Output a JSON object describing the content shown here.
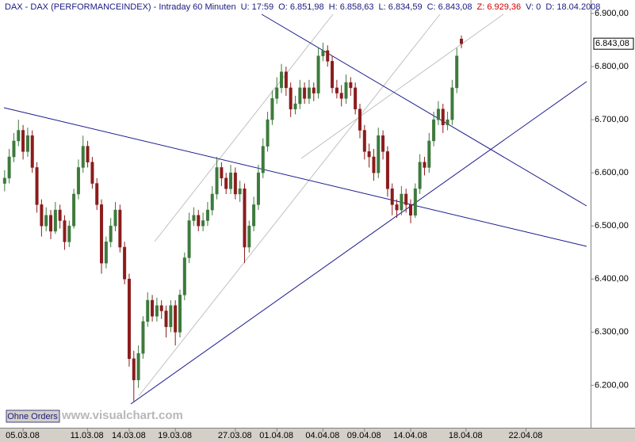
{
  "chart_data": {
    "type": "candlestick",
    "header": [
      "DAX - DAX (PERFORMANCEINDEX) - Intraday 60 Minuten",
      "U: 17:59",
      "O: 6.851,98",
      "H: 6.858,63",
      "L: 6.834,59",
      "C: 6.843,08",
      "Z: 6.929,36",
      "V: 0",
      "D: 18.04.2008"
    ],
    "button": "Ohne Orders",
    "watermark": "www.visualchart.com",
    "up_color": "#3d7a3d",
    "down_color": "#8b1c1c",
    "ylim": [
      6120,
      6900
    ],
    "yticks": [
      {
        "value": 6900,
        "label": "6.900,00"
      },
      {
        "value": 6800,
        "label": "6.800,00"
      },
      {
        "value": 6700,
        "label": "6.700,00"
      },
      {
        "value": 6600,
        "label": "6.600,00"
      },
      {
        "value": 6500,
        "label": "6.500,00"
      },
      {
        "value": 6400,
        "label": "6.400,00"
      },
      {
        "value": 6300,
        "label": "6.300,00"
      },
      {
        "value": 6200,
        "label": "6.200,00"
      }
    ],
    "xlim": [
      -1,
      127
    ],
    "xticks": [
      {
        "value": 4,
        "label": "05.03.08"
      },
      {
        "value": 18,
        "label": "11.03.08"
      },
      {
        "value": 27,
        "label": "14.03.08"
      },
      {
        "value": 37,
        "label": "19.03.08"
      },
      {
        "value": 50,
        "label": "27.03.08"
      },
      {
        "value": 59,
        "label": "01.04.08"
      },
      {
        "value": 69,
        "label": "04.04.08"
      },
      {
        "value": 78,
        "label": "09.04.08"
      },
      {
        "value": 88,
        "label": "14.04.08"
      },
      {
        "value": 100,
        "label": "18.04.08"
      },
      {
        "value": 113,
        "label": "22.04.08"
      }
    ],
    "price_marker": {
      "value": 6843.08,
      "label": "6.843,08"
    },
    "open": [
      6580,
      6590,
      6630,
      6660,
      6680,
      6640,
      6670,
      6610,
      6540,
      6500,
      6520,
      6490,
      6530,
      6510,
      6470,
      6500,
      6560,
      6610,
      6650,
      6620,
      6580,
      6540,
      6430,
      6470,
      6500,
      6530,
      6460,
      6400,
      6250,
      6210,
      6260,
      6320,
      6360,
      6330,
      6350,
      6340,
      6310,
      6350,
      6300,
      6370,
      6440,
      6510,
      6520,
      6500,
      6510,
      6530,
      6560,
      6610,
      6590,
      6570,
      6600,
      6560,
      6570,
      6460,
      6500,
      6540,
      6600,
      6650,
      6700,
      6740,
      6760,
      6790,
      6760,
      6720,
      6730,
      6760,
      6740,
      6760,
      6750,
      6820,
      6830,
      6810,
      6760,
      6750,
      6740,
      6770,
      6760,
      6720,
      6680,
      6640,
      6630,
      6600,
      6670,
      6640,
      6570,
      6540,
      6530,
      6560,
      6540,
      6520,
      6570,
      6620,
      6610,
      6660,
      6700,
      6720,
      6690,
      6700,
      6760,
      6851.98
    ],
    "high": [
      6605,
      6645,
      6675,
      6700,
      6690,
      6685,
      6680,
      6620,
      6550,
      6535,
      6530,
      6545,
      6540,
      6520,
      6510,
      6570,
      6625,
      6670,
      6660,
      6630,
      6590,
      6550,
      6480,
      6515,
      6545,
      6540,
      6470,
      6410,
      6265,
      6275,
      6330,
      6375,
      6370,
      6365,
      6360,
      6350,
      6360,
      6360,
      6380,
      6450,
      6525,
      6535,
      6530,
      6525,
      6545,
      6575,
      6630,
      6620,
      6600,
      6615,
      6610,
      6585,
      6580,
      6510,
      6555,
      6615,
      6665,
      6715,
      6755,
      6780,
      6805,
      6800,
      6770,
      6745,
      6775,
      6770,
      6775,
      6770,
      6835,
      6845,
      6840,
      6820,
      6775,
      6765,
      6785,
      6780,
      6770,
      6730,
      6690,
      6655,
      6645,
      6685,
      6680,
      6650,
      6580,
      6550,
      6575,
      6570,
      6550,
      6580,
      6635,
      6630,
      6675,
      6715,
      6735,
      6730,
      6715,
      6775,
      6835,
      6858.63
    ],
    "low": [
      6565,
      6580,
      6620,
      6650,
      6625,
      6630,
      6600,
      6525,
      6480,
      6490,
      6475,
      6485,
      6495,
      6455,
      6460,
      6495,
      6550,
      6600,
      6610,
      6570,
      6530,
      6410,
      6420,
      6460,
      6490,
      6450,
      6390,
      6235,
      6170,
      6195,
      6250,
      6310,
      6320,
      6320,
      6325,
      6290,
      6300,
      6275,
      6290,
      6360,
      6430,
      6500,
      6490,
      6490,
      6500,
      6520,
      6550,
      6575,
      6560,
      6560,
      6550,
      6545,
      6430,
      6450,
      6490,
      6530,
      6590,
      6640,
      6690,
      6730,
      6750,
      6745,
      6705,
      6710,
      6720,
      6730,
      6730,
      6735,
      6740,
      6810,
      6800,
      6750,
      6740,
      6725,
      6730,
      6745,
      6710,
      6665,
      6625,
      6610,
      6585,
      6590,
      6625,
      6555,
      6520,
      6515,
      6520,
      6525,
      6505,
      6515,
      6560,
      6595,
      6600,
      6650,
      6690,
      6675,
      6680,
      6690,
      6750,
      6834.59
    ],
    "close": [
      6590,
      6630,
      6660,
      6680,
      6640,
      6670,
      6610,
      6540,
      6500,
      6520,
      6490,
      6530,
      6510,
      6470,
      6500,
      6560,
      6610,
      6650,
      6620,
      6580,
      6540,
      6430,
      6470,
      6500,
      6530,
      6460,
      6400,
      6250,
      6210,
      6260,
      6320,
      6360,
      6330,
      6350,
      6340,
      6310,
      6350,
      6300,
      6370,
      6440,
      6510,
      6520,
      6500,
      6510,
      6530,
      6560,
      6610,
      6590,
      6570,
      6600,
      6560,
      6570,
      6460,
      6500,
      6540,
      6600,
      6650,
      6700,
      6740,
      6760,
      6790,
      6760,
      6720,
      6730,
      6760,
      6740,
      6760,
      6750,
      6820,
      6830,
      6810,
      6760,
      6750,
      6740,
      6770,
      6760,
      6720,
      6680,
      6640,
      6630,
      6600,
      6670,
      6640,
      6570,
      6540,
      6530,
      6560,
      6540,
      6520,
      6570,
      6620,
      6610,
      6660,
      6700,
      6720,
      6690,
      6700,
      6760,
      6820,
      6843.08
    ]
  }
}
